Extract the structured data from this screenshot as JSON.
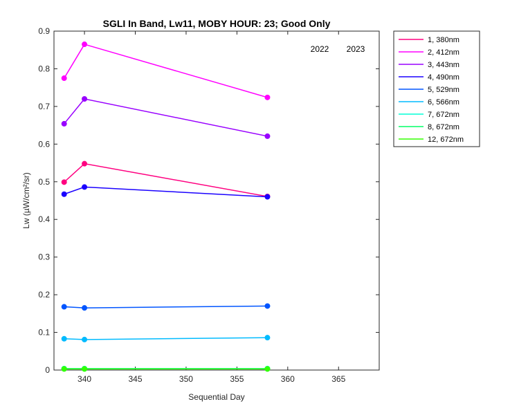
{
  "chart_data": {
    "type": "line",
    "title": "SGLI In Band,  Lw11, MOBY HOUR: 23;  Good Only",
    "xlabel": "Sequential Day",
    "ylabel": "Lw (µW/cm²/sr)",
    "xlim": [
      337,
      369
    ],
    "ylim": [
      0,
      0.9
    ],
    "xticks": [
      340,
      345,
      350,
      355,
      360,
      365
    ],
    "yticks": [
      0,
      0.1,
      0.2,
      0.3,
      0.4,
      0.5,
      0.6,
      0.7,
      0.8,
      0.9
    ],
    "x": [
      338,
      340,
      358
    ],
    "series": [
      {
        "name": "1, 380nm",
        "color": "#ff0080",
        "values": [
          0.499,
          0.548,
          0.461
        ]
      },
      {
        "name": "2, 412nm",
        "color": "#ff00ff",
        "values": [
          0.775,
          0.865,
          0.724
        ]
      },
      {
        "name": "3, 443nm",
        "color": "#9900ff",
        "values": [
          0.654,
          0.72,
          0.621
        ]
      },
      {
        "name": "4, 490nm",
        "color": "#1a00ff",
        "values": [
          0.467,
          0.486,
          0.46
        ]
      },
      {
        "name": "5, 529nm",
        "color": "#0055ff",
        "values": [
          0.168,
          0.165,
          0.17
        ]
      },
      {
        "name": "6, 566nm",
        "color": "#00bbff",
        "values": [
          0.083,
          0.081,
          0.086
        ]
      },
      {
        "name": "7, 672nm",
        "color": "#00ffd5",
        "values": [
          0.004,
          0.004,
          0.004
        ]
      },
      {
        "name": "8, 672nm",
        "color": "#00ff66",
        "values": [
          0.003,
          0.003,
          0.003
        ]
      },
      {
        "name": "12, 672nm",
        "color": "#33ff00",
        "values": [
          0.003,
          0.003,
          0.003
        ]
      }
    ],
    "annotations": [
      "2022",
      "2023"
    ],
    "legend_position": "outside-top-right",
    "grid": false
  }
}
